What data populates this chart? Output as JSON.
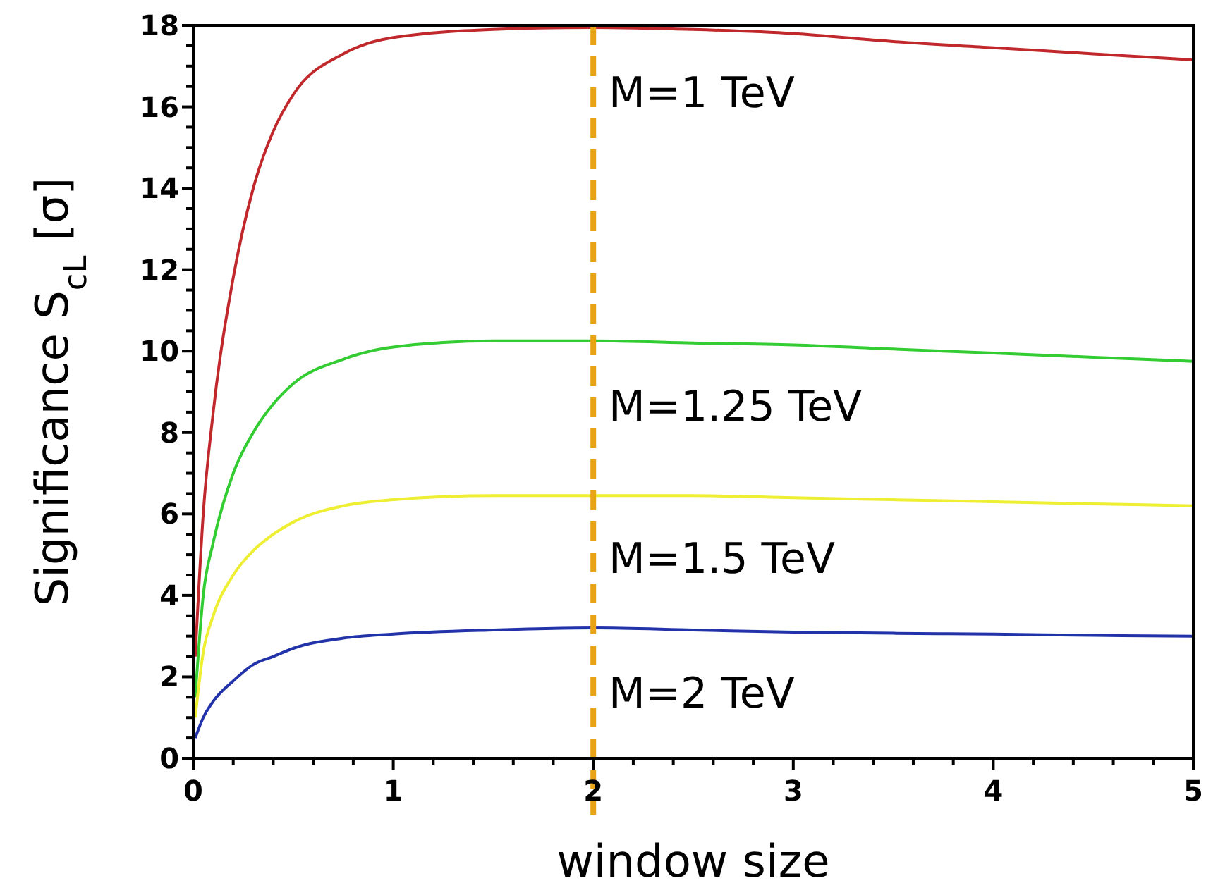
{
  "chart_data": {
    "type": "line",
    "xlabel": "window size",
    "ylabel": "Significance S$_{cL}$ [σ]",
    "xlim": [
      0,
      5
    ],
    "ylim": [
      0,
      18
    ],
    "xticks": [
      0,
      {
        "value": 0.2,
        "label": null
      },
      {
        "value": 0.4,
        "label": null
      },
      {
        "value": 0.6,
        "label": null
      },
      {
        "value": 0.8,
        "label": null
      },
      1,
      {
        "value": 1.2,
        "label": null
      },
      {
        "value": 1.4,
        "label": null
      },
      {
        "value": 1.6,
        "label": null
      },
      {
        "value": 1.8,
        "label": null
      },
      2,
      {
        "value": 2.2,
        "label": null
      },
      {
        "value": 2.4,
        "label": null
      },
      {
        "value": 2.6,
        "label": null
      },
      {
        "value": 2.8,
        "label": null
      },
      3,
      {
        "value": 3.2,
        "label": null
      },
      {
        "value": 3.4,
        "label": null
      },
      {
        "value": 3.6,
        "label": null
      },
      {
        "value": 3.8,
        "label": null
      },
      4,
      {
        "value": 4.2,
        "label": null
      },
      {
        "value": 4.4,
        "label": null
      },
      {
        "value": 4.6,
        "label": null
      },
      {
        "value": 4.8,
        "label": null
      },
      5
    ],
    "yticks": [
      0,
      {
        "value": 0.5,
        "label": null
      },
      {
        "value": 1,
        "label": null
      },
      {
        "value": 1.5,
        "label": null
      },
      2,
      {
        "value": 2.5,
        "label": null
      },
      {
        "value": 3,
        "label": null
      },
      {
        "value": 3.5,
        "label": null
      },
      4,
      {
        "value": 4.5,
        "label": null
      },
      {
        "value": 5,
        "label": null
      },
      {
        "value": 5.5,
        "label": null
      },
      6,
      {
        "value": 6.5,
        "label": null
      },
      {
        "value": 7,
        "label": null
      },
      {
        "value": 7.5,
        "label": null
      },
      8,
      {
        "value": 8.5,
        "label": null
      },
      {
        "value": 9,
        "label": null
      },
      {
        "value": 9.5,
        "label": null
      },
      10,
      {
        "value": 10.5,
        "label": null
      },
      {
        "value": 11,
        "label": null
      },
      {
        "value": 11.5,
        "label": null
      },
      12,
      {
        "value": 12.5,
        "label": null
      },
      {
        "value": 13,
        "label": null
      },
      {
        "value": 13.5,
        "label": null
      },
      14,
      {
        "value": 14.5,
        "label": null
      },
      {
        "value": 15,
        "label": null
      },
      {
        "value": 15.5,
        "label": null
      },
      16,
      {
        "value": 16.5,
        "label": null
      },
      {
        "value": 17,
        "label": null
      },
      {
        "value": 17.5,
        "label": null
      },
      18
    ],
    "grid": false,
    "legend": false,
    "marker": "none",
    "line_style": "solid",
    "x": [
      0.01,
      0.05,
      0.1,
      0.2,
      0.3,
      0.4,
      0.5,
      0.75,
      1,
      1.5,
      2,
      2.5,
      3,
      3.5,
      4,
      4.5,
      5
    ],
    "series": [
      {
        "name": "M=1 TeV",
        "color": "#c0282c",
        "values": [
          2.5,
          6,
          8.5,
          11.8,
          14,
          15.4,
          16.3,
          17.3,
          17.7,
          17.9,
          17.95,
          17.9,
          17.8,
          17.6,
          17.45,
          17.3,
          17.15
        ]
      },
      {
        "name": "M=1.25 TeV",
        "color": "#33cc33",
        "values": [
          1.5,
          4,
          5.3,
          7,
          8,
          8.7,
          9.2,
          9.8,
          10.1,
          10.25,
          10.25,
          10.2,
          10.15,
          10.05,
          9.95,
          9.85,
          9.75
        ]
      },
      {
        "name": "M=1.5 TeV",
        "color": "#eeee33",
        "values": [
          1,
          2.6,
          3.5,
          4.5,
          5.1,
          5.5,
          5.8,
          6.2,
          6.35,
          6.45,
          6.45,
          6.45,
          6.4,
          6.35,
          6.3,
          6.25,
          6.2
        ]
      },
      {
        "name": "M=2 TeV",
        "color": "#2233aa",
        "values": [
          0.5,
          1,
          1.4,
          1.9,
          2.3,
          2.5,
          2.7,
          2.95,
          3.05,
          3.15,
          3.2,
          3.15,
          3.1,
          3.07,
          3.05,
          3.02,
          3.0
        ]
      }
    ],
    "ref_lines": [
      {
        "axis": "x",
        "value": 2,
        "color": "#e8a317",
        "line_style": "dashed"
      }
    ]
  }
}
